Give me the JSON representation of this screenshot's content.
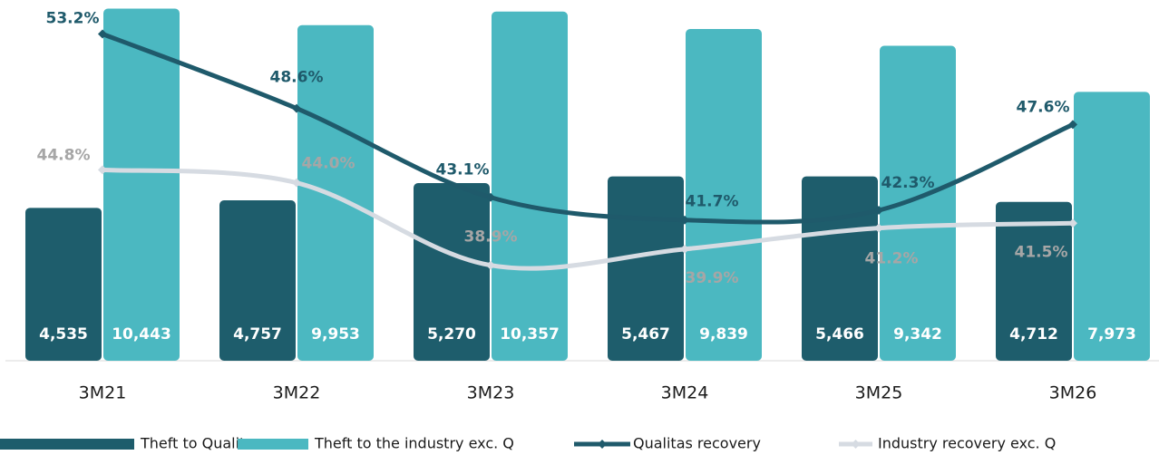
{
  "chart_data": {
    "type": "bar_line",
    "categories": [
      "3M21",
      "3M22",
      "3M23",
      "3M24",
      "3M25",
      "3M26"
    ],
    "ylim": [
      0,
      10700
    ],
    "y2lim": [
      33,
      55.3
    ],
    "series": [
      {
        "name": "Theft to Qualitas",
        "type": "bar",
        "color": "#1e5d6c",
        "values": [
          4535,
          4757,
          5270,
          5467,
          5466,
          4712
        ],
        "value_labels": [
          "4,535",
          "4,757",
          "5,270",
          "5,467",
          "5,466",
          "4,712"
        ]
      },
      {
        "name": "Theft to the industry exc. Q",
        "type": "bar",
        "color": "#4bb8c1",
        "values": [
          10443,
          9953,
          10357,
          9839,
          9342,
          7973
        ],
        "value_labels": [
          "10,443",
          "9,953",
          "10,357",
          "9,839",
          "9,342",
          "7,973"
        ]
      },
      {
        "name": "Qualitas recovery",
        "type": "line",
        "axis": "y2",
        "color": "#1f5a6b",
        "label_color": "#1f5a6b",
        "values": [
          53.2,
          48.6,
          43.1,
          41.7,
          42.3,
          47.6
        ],
        "value_labels": [
          "53.2%",
          "48.6%",
          "43.1%",
          "41.7%",
          "42.3%",
          "47.6%"
        ]
      },
      {
        "name": "Industry recovery exc. Q",
        "type": "line",
        "axis": "y2",
        "color": "#d6dbe2",
        "label_color": "#a6a6a6",
        "values": [
          44.8,
          44.0,
          38.9,
          39.9,
          41.2,
          41.5
        ],
        "value_labels": [
          "44.8%",
          "44.0%",
          "38.9%",
          "39.9%",
          "41.2%",
          "41.5%"
        ]
      }
    ]
  }
}
